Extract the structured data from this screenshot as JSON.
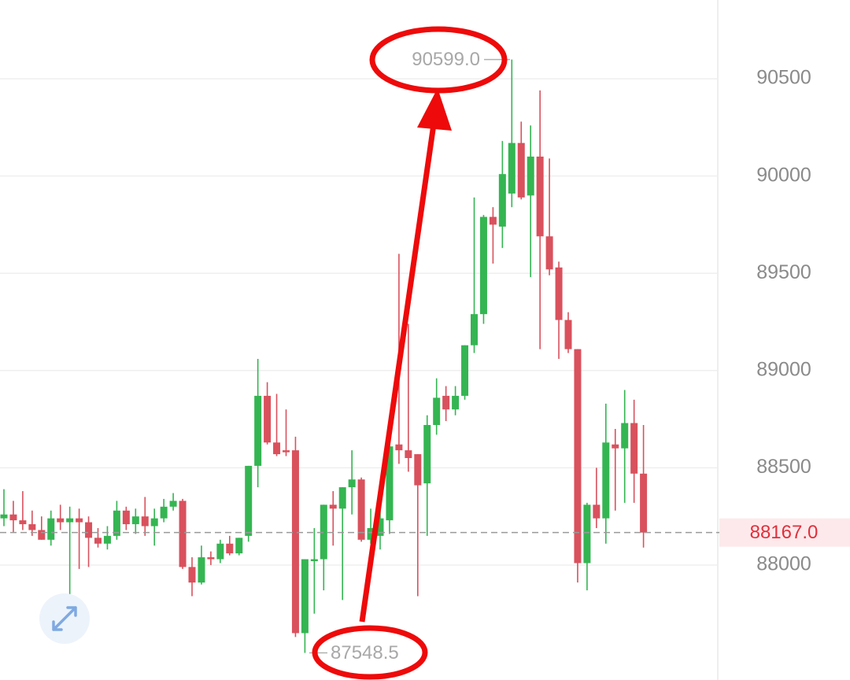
{
  "chart_data": {
    "type": "candlestick",
    "up_color": "#34b552",
    "down_color": "#d9515d",
    "ylim": [
      87409,
      90905
    ],
    "yticks": [
      88000,
      88500,
      89000,
      89500,
      90000,
      90500
    ],
    "grid": true,
    "open": [
      88240,
      88260,
      88230,
      88210,
      88180,
      88130,
      88240,
      88220,
      88240,
      88220,
      88140,
      88110,
      88150,
      88280,
      88210,
      88250,
      88200,
      88240,
      88300,
      88330,
      87990,
      87910,
      88040,
      88030,
      88110,
      88060,
      88150,
      88510,
      88870,
      88630,
      88590,
      88590,
      87650,
      88020,
      88030,
      88310,
      88290,
      88400,
      88440,
      88130,
      88150,
      88230,
      88620,
      88590,
      88570,
      88420,
      88720,
      88870,
      88800,
      88870,
      89130,
      89290,
      89790,
      89740,
      89910,
      90170,
      89900,
      90100,
      89690,
      89530,
      89260,
      89110,
      88010,
      88310,
      88240,
      88620,
      88600,
      88730,
      88470
    ],
    "high": [
      88390,
      88330,
      88380,
      88280,
      88250,
      88280,
      88310,
      88300,
      88290,
      88250,
      88190,
      88200,
      88330,
      88300,
      88290,
      88350,
      88290,
      88340,
      88370,
      88340,
      88040,
      88100,
      88070,
      88130,
      88150,
      88140,
      88510,
      89060,
      88940,
      88880,
      88800,
      88660,
      88030,
      88190,
      88310,
      88380,
      88400,
      88590,
      88450,
      88290,
      88340,
      88620,
      89600,
      89240,
      88570,
      88770,
      88960,
      88920,
      88920,
      89130,
      89890,
      89800,
      89840,
      90180,
      90599,
      90280,
      90260,
      90440,
      90090,
      89560,
      89300,
      89110,
      88320,
      88500,
      88830,
      88700,
      88900,
      88850,
      88720
    ],
    "low": [
      88200,
      88170,
      88180,
      88150,
      88130,
      88100,
      88180,
      87720,
      87980,
      87990,
      88090,
      88080,
      88130,
      88180,
      88160,
      88150,
      88100,
      88220,
      88280,
      87980,
      87840,
      87900,
      88000,
      88010,
      88050,
      88050,
      88120,
      88400,
      88620,
      88560,
      88560,
      87630,
      87548.5,
      87750,
      87870,
      88100,
      87820,
      88260,
      88120,
      88110,
      88080,
      88160,
      88520,
      88480,
      87840,
      88150,
      88670,
      88740,
      88770,
      88850,
      89090,
      89240,
      89550,
      89630,
      89840,
      89880,
      89480,
      89110,
      89490,
      89060,
      89090,
      87910,
      87870,
      88190,
      88110,
      88280,
      88320,
      88320,
      88090
    ],
    "close": [
      88260,
      88230,
      88210,
      88180,
      88130,
      88240,
      88220,
      88240,
      88220,
      88140,
      88110,
      88150,
      88280,
      88210,
      88250,
      88200,
      88240,
      88300,
      88330,
      87990,
      87910,
      88040,
      88030,
      88110,
      88060,
      88140,
      88510,
      88870,
      88630,
      88570,
      88580,
      87650,
      88030,
      88030,
      88310,
      88290,
      88400,
      88440,
      88130,
      88190,
      88240,
      88610,
      88590,
      88550,
      88410,
      88720,
      88860,
      88800,
      88870,
      89130,
      89290,
      89790,
      89750,
      90010,
      90170,
      89890,
      90100,
      89690,
      89520,
      89260,
      89110,
      88010,
      88310,
      88240,
      88630,
      88600,
      88730,
      88470,
      88167
    ],
    "annotations": [
      {
        "value": 90599,
        "label": "90599.0"
      },
      {
        "value": 87548.5,
        "label": "87548.5"
      }
    ],
    "last_price": {
      "value": 88167,
      "label": "88167.0"
    }
  }
}
